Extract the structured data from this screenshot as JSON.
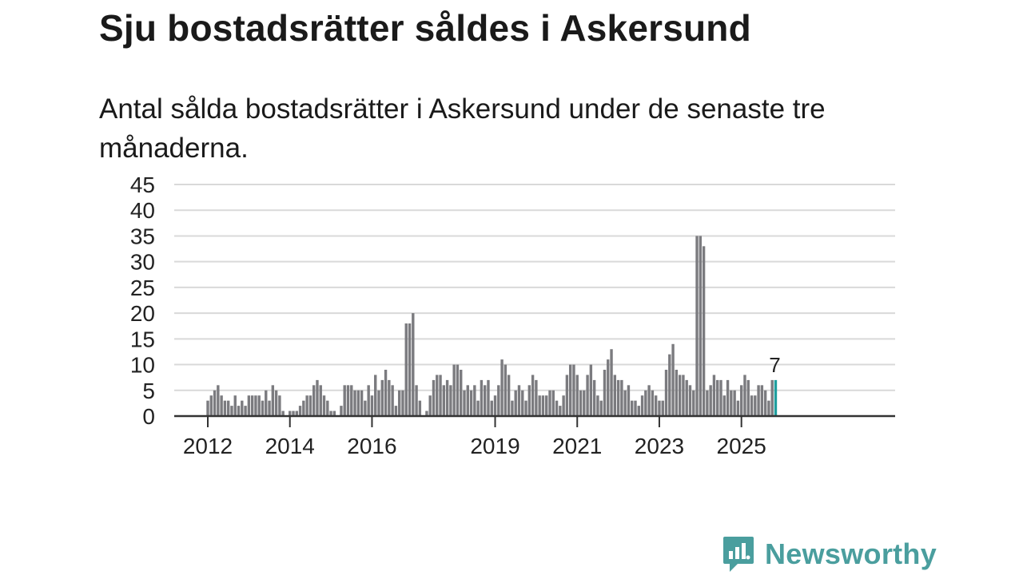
{
  "header": {
    "title": "Sju bostadsrätter såldes i Askersund",
    "subtitle": "Antal sålda bostadsrätter i Askersund under de senaste tre månaderna."
  },
  "brand": {
    "name": "Newsworthy",
    "color": "#4a9e9e"
  },
  "colors": {
    "bar": "#7b7b7f",
    "highlight": "#1f9e9e",
    "grid": "#d9d9d9",
    "axis": "#333333"
  },
  "chart_data": {
    "type": "bar",
    "title": "Sju bostadsrätter såldes i Askersund",
    "xlabel": "",
    "ylabel": "",
    "ylim": [
      0,
      45
    ],
    "yticks": [
      0,
      5,
      10,
      15,
      20,
      25,
      30,
      35,
      40,
      45
    ],
    "xticks": [
      {
        "label": "2012",
        "index": 0
      },
      {
        "label": "2014",
        "index": 24
      },
      {
        "label": "2016",
        "index": 48
      },
      {
        "label": "2019",
        "index": 84
      },
      {
        "label": "2021",
        "index": 108
      },
      {
        "label": "2023",
        "index": 132
      },
      {
        "label": "2025",
        "index": 156
      }
    ],
    "grid": true,
    "start": "2012-01",
    "frequency": "monthly",
    "values": [
      3,
      4,
      5,
      6,
      4,
      3,
      3,
      2,
      4,
      2,
      3,
      2,
      4,
      4,
      4,
      4,
      3,
      5,
      3,
      6,
      5,
      4,
      1,
      0,
      1,
      1,
      1,
      2,
      3,
      4,
      4,
      6,
      7,
      6,
      4,
      3,
      1,
      1,
      0,
      2,
      6,
      6,
      6,
      5,
      5,
      5,
      3,
      6,
      4,
      8,
      5,
      7,
      9,
      7,
      6,
      2,
      5,
      5,
      18,
      18,
      20,
      6,
      3,
      0,
      1,
      4,
      7,
      8,
      8,
      6,
      7,
      6,
      10,
      10,
      9,
      5,
      6,
      5,
      6,
      3,
      7,
      6,
      7,
      3,
      4,
      6,
      11,
      10,
      8,
      3,
      5,
      6,
      5,
      3,
      6,
      8,
      7,
      4,
      4,
      4,
      5,
      5,
      3,
      2,
      4,
      8,
      10,
      10,
      8,
      5,
      5,
      8,
      10,
      7,
      4,
      3,
      9,
      11,
      13,
      8,
      7,
      7,
      5,
      6,
      3,
      3,
      2,
      4,
      5,
      6,
      5,
      4,
      3,
      3,
      9,
      12,
      14,
      9,
      8,
      8,
      7,
      6,
      5,
      35,
      35,
      33,
      5,
      6,
      8,
      7,
      7,
      4,
      7,
      5,
      5,
      3,
      6,
      8,
      7,
      4,
      4,
      6,
      6,
      5,
      3,
      7,
      7
    ],
    "highlight_last": true,
    "last_value_label": "7"
  }
}
